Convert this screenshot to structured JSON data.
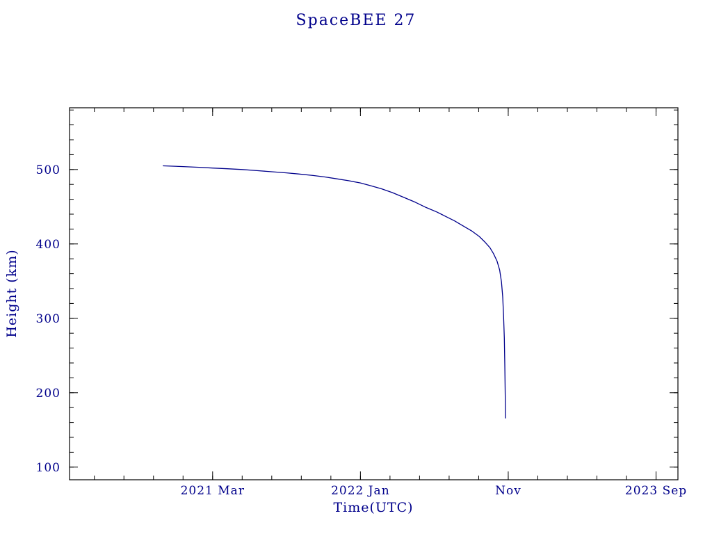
{
  "page": {
    "background": "#ffffff"
  },
  "chart_data": {
    "type": "line",
    "title": "SpaceBEE 27",
    "xlabel": "Time(UTC)",
    "ylabel": "Height (km)",
    "grid": false,
    "legend": "none",
    "accent_color": "#00008b",
    "frame_color": "#000000",
    "xlim": [
      2020.36,
      2023.79
    ],
    "ylim": [
      83,
      583
    ],
    "x_major_ticks": [
      {
        "value": 2021.1667,
        "label": "2021 Mar"
      },
      {
        "value": 2022.0,
        "label": "2022 Jan"
      },
      {
        "value": 2022.8333,
        "label": "Nov"
      },
      {
        "value": 2023.6667,
        "label": "2023 Sep"
      }
    ],
    "x_minor_base": 2020.0,
    "x_minor_step_years": 0.1666667,
    "y_major_ticks": [
      100,
      200,
      300,
      400,
      500
    ],
    "y_minor_step": 20,
    "series": [
      {
        "name": "SpaceBEE 27 height",
        "color": "#00008b",
        "x": [
          2020.888,
          2020.99,
          2021.09,
          2021.167,
          2021.25,
          2021.333,
          2021.417,
          2021.5,
          2021.583,
          2021.65,
          2021.733,
          2021.8,
          2021.867,
          2021.933,
          2022.0,
          2022.06,
          2022.12,
          2022.18,
          2022.24,
          2022.31,
          2022.37,
          2022.43,
          2022.48,
          2022.53,
          2022.58,
          2022.63,
          2022.67,
          2022.7,
          2022.73,
          2022.75,
          2022.77,
          2022.785,
          2022.795,
          2022.802,
          2022.807,
          2022.811,
          2022.814,
          2022.816,
          2022.817,
          2022.818
        ],
        "y": [
          505,
          504,
          503,
          502,
          501,
          500,
          498.5,
          497,
          495.5,
          494,
          492,
          490,
          487.5,
          485,
          482,
          478,
          474,
          469,
          463,
          456,
          449,
          443,
          437,
          431,
          424,
          417,
          410,
          403,
          395,
          387,
          377,
          365,
          349,
          329,
          304,
          274,
          238,
          205,
          185,
          166
        ]
      }
    ]
  }
}
